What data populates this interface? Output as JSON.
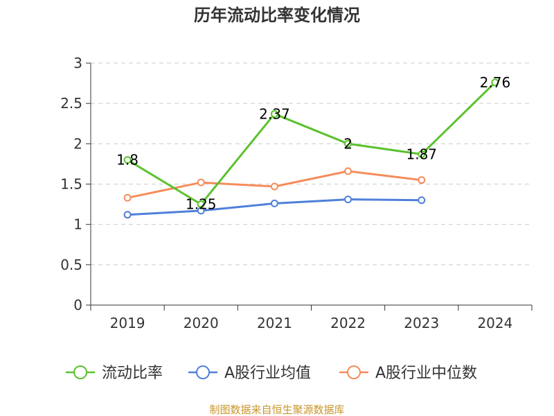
{
  "chart_data": {
    "type": "line",
    "title": "历年流动比率变化情况",
    "categories": [
      "2019",
      "2020",
      "2021",
      "2022",
      "2023",
      "2024"
    ],
    "ylim": [
      0,
      3
    ],
    "yticks": [
      "0",
      "0.5",
      "1",
      "1.5",
      "2",
      "2.5",
      "3"
    ],
    "grid": true,
    "legend_position": "bottom",
    "series": [
      {
        "name": "流动比率",
        "color": "#5ac22e",
        "values": [
          1.8,
          1.25,
          2.37,
          2.0,
          1.87,
          2.76
        ],
        "labels": [
          "1.8",
          "1.25",
          "2.37",
          "2",
          "1.87",
          "2.76"
        ]
      },
      {
        "name": "A股行业均值",
        "color": "#4f7fdb",
        "values": [
          1.12,
          1.17,
          1.26,
          1.31,
          1.3,
          null
        ]
      },
      {
        "name": "A股行业中位数",
        "color": "#f68c5a",
        "values": [
          1.33,
          1.52,
          1.47,
          1.66,
          1.55,
          null
        ]
      }
    ]
  },
  "footer": {
    "source": "制图数据来自恒生聚源数据库"
  }
}
